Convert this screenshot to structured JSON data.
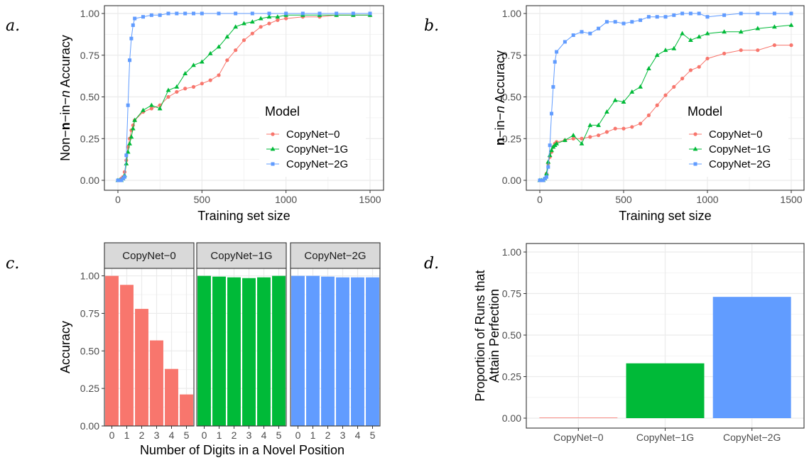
{
  "panel_letters": [
    "a.",
    "b.",
    "c.",
    "d."
  ],
  "colors": {
    "CopyNet-0": "#F8766D",
    "CopyNet-1G": "#00BA38",
    "CopyNet-2G": "#619CFF"
  },
  "chart_data": [
    {
      "type": "line",
      "panel": "a.",
      "xlabel": "Training set size",
      "ylabel_parts": [
        "Non−",
        "n",
        "−in−",
        "n",
        " Accuracy"
      ],
      "xlim": [
        0,
        1500
      ],
      "ylim": [
        0,
        1
      ],
      "xticks": [
        0,
        500,
        1000,
        1500
      ],
      "yticks": [
        0,
        0.25,
        0.5,
        0.75,
        1
      ],
      "ytick_labels": [
        "0.00",
        "0.25",
        "0.50",
        "0.75",
        "1.00"
      ],
      "legend_title": "Model",
      "legend_position": "right-middle",
      "grid": true,
      "series": [
        {
          "name": "CopyNet−0",
          "color": "#F8766D",
          "x": [
            0,
            10,
            20,
            30,
            40,
            50,
            60,
            70,
            80,
            90,
            100,
            150,
            200,
            250,
            300,
            350,
            400,
            450,
            500,
            550,
            600,
            650,
            700,
            750,
            800,
            850,
            900,
            950,
            1000,
            1100,
            1200,
            1300,
            1400,
            1500
          ],
          "y": [
            0,
            0,
            0.01,
            0.02,
            0.05,
            0.12,
            0.2,
            0.25,
            0.3,
            0.33,
            0.36,
            0.41,
            0.43,
            0.45,
            0.5,
            0.53,
            0.55,
            0.56,
            0.58,
            0.6,
            0.63,
            0.72,
            0.78,
            0.84,
            0.88,
            0.92,
            0.94,
            0.96,
            0.97,
            0.98,
            0.98,
            0.99,
            0.99,
            0.99
          ]
        },
        {
          "name": "CopyNet−1G",
          "color": "#00BA38",
          "x": [
            0,
            10,
            20,
            30,
            40,
            50,
            60,
            70,
            80,
            90,
            100,
            150,
            200,
            250,
            300,
            350,
            400,
            450,
            500,
            550,
            600,
            650,
            700,
            750,
            800,
            850,
            900,
            950,
            1000,
            1100,
            1200,
            1300,
            1400,
            1500
          ],
          "y": [
            0,
            0,
            0,
            0.01,
            0.03,
            0.1,
            0.17,
            0.22,
            0.26,
            0.31,
            0.36,
            0.42,
            0.45,
            0.43,
            0.54,
            0.56,
            0.64,
            0.69,
            0.71,
            0.76,
            0.8,
            0.86,
            0.92,
            0.94,
            0.95,
            0.97,
            0.98,
            0.98,
            0.99,
            0.99,
            0.99,
            0.99,
            0.99,
            0.99
          ]
        },
        {
          "name": "CopyNet−2G",
          "color": "#619CFF",
          "x": [
            0,
            10,
            20,
            30,
            40,
            50,
            60,
            70,
            80,
            90,
            100,
            150,
            200,
            250,
            300,
            350,
            400,
            450,
            500,
            600,
            700,
            800,
            900,
            1000,
            1100,
            1200,
            1300,
            1400,
            1500
          ],
          "y": [
            0,
            0,
            0,
            0.01,
            0.02,
            0.15,
            0.45,
            0.72,
            0.85,
            0.93,
            0.97,
            0.98,
            0.99,
            0.99,
            1,
            1,
            1,
            1,
            1,
            1,
            1,
            1,
            1,
            1,
            1,
            1,
            1,
            1,
            1
          ]
        }
      ]
    },
    {
      "type": "line",
      "panel": "b.",
      "xlabel": "Training set size",
      "ylabel_parts": [
        "n",
        "−in−",
        "n",
        " Accuracy"
      ],
      "xlim": [
        0,
        1500
      ],
      "ylim": [
        0,
        1
      ],
      "xticks": [
        0,
        500,
        1000,
        1500
      ],
      "yticks": [
        0,
        0.25,
        0.5,
        0.75,
        1
      ],
      "ytick_labels": [
        "0.00",
        "0.25",
        "0.50",
        "0.75",
        "1.00"
      ],
      "legend_title": "Model",
      "legend_position": "right-middle",
      "grid": true,
      "series": [
        {
          "name": "CopyNet−0",
          "color": "#F8766D",
          "x": [
            0,
            10,
            20,
            30,
            40,
            50,
            60,
            70,
            80,
            90,
            100,
            150,
            200,
            250,
            300,
            350,
            400,
            450,
            500,
            550,
            600,
            650,
            700,
            750,
            800,
            850,
            900,
            950,
            1000,
            1100,
            1200,
            1300,
            1400,
            1500
          ],
          "y": [
            0,
            0,
            0,
            0.01,
            0.04,
            0.1,
            0.14,
            0.17,
            0.2,
            0.22,
            0.23,
            0.24,
            0.25,
            0.25,
            0.26,
            0.27,
            0.29,
            0.31,
            0.31,
            0.32,
            0.34,
            0.39,
            0.45,
            0.51,
            0.56,
            0.61,
            0.66,
            0.68,
            0.73,
            0.76,
            0.78,
            0.78,
            0.81,
            0.81
          ]
        },
        {
          "name": "CopyNet−1G",
          "color": "#00BA38",
          "x": [
            0,
            10,
            20,
            30,
            40,
            50,
            60,
            70,
            80,
            90,
            100,
            150,
            200,
            250,
            300,
            350,
            400,
            450,
            500,
            550,
            600,
            650,
            700,
            750,
            800,
            850,
            900,
            950,
            1000,
            1100,
            1200,
            1300,
            1400,
            1500
          ],
          "y": [
            0,
            0,
            0,
            0.01,
            0.04,
            0.11,
            0.15,
            0.18,
            0.2,
            0.21,
            0.22,
            0.24,
            0.27,
            0.22,
            0.33,
            0.33,
            0.41,
            0.48,
            0.47,
            0.53,
            0.56,
            0.67,
            0.75,
            0.78,
            0.79,
            0.88,
            0.84,
            0.86,
            0.88,
            0.89,
            0.89,
            0.91,
            0.92,
            0.93
          ]
        },
        {
          "name": "CopyNet−2G",
          "color": "#619CFF",
          "x": [
            0,
            10,
            20,
            30,
            40,
            50,
            60,
            70,
            80,
            90,
            100,
            150,
            200,
            250,
            300,
            350,
            400,
            450,
            500,
            550,
            600,
            650,
            700,
            750,
            800,
            850,
            900,
            950,
            1000,
            1100,
            1200,
            1300,
            1400,
            1500
          ],
          "y": [
            0,
            0,
            0,
            0.01,
            0.02,
            0.08,
            0.21,
            0.4,
            0.56,
            0.71,
            0.77,
            0.83,
            0.87,
            0.89,
            0.88,
            0.91,
            0.95,
            0.95,
            0.94,
            0.95,
            0.96,
            0.98,
            0.98,
            0.98,
            0.99,
            1,
            1,
            1,
            0.98,
            0.99,
            1,
            1,
            1,
            1
          ]
        }
      ]
    },
    {
      "type": "bar",
      "panel": "c.",
      "facets": [
        "CopyNet−0",
        "CopyNet−1G",
        "CopyNet−2G"
      ],
      "categories": [
        "0",
        "1",
        "2",
        "3",
        "4",
        "5"
      ],
      "xlabel": "Number of Digits in a Novel Position",
      "ylabel": "Accuracy",
      "ylim": [
        0,
        1.05
      ],
      "yticks": [
        0,
        0.25,
        0.5,
        0.75,
        1
      ],
      "ytick_labels": [
        "0.00",
        "0.25",
        "0.50",
        "0.75",
        "1.00"
      ],
      "grid": true,
      "series": [
        {
          "name": "CopyNet−0",
          "color": "#F8766D",
          "values": [
            1.0,
            0.94,
            0.78,
            0.57,
            0.38,
            0.21
          ]
        },
        {
          "name": "CopyNet−1G",
          "color": "#00BA38",
          "values": [
            1.0,
            0.995,
            0.99,
            0.985,
            0.99,
            1.0
          ]
        },
        {
          "name": "CopyNet−2G",
          "color": "#619CFF",
          "values": [
            1.0,
            1.0,
            0.995,
            0.99,
            0.99,
            0.99
          ]
        }
      ]
    },
    {
      "type": "bar",
      "panel": "d.",
      "categories": [
        "CopyNet−0",
        "CopyNet−1G",
        "CopyNet−2G"
      ],
      "values": [
        0.0,
        0.33,
        0.73
      ],
      "colors": [
        "#F8766D",
        "#00BA38",
        "#619CFF"
      ],
      "ylabel_lines": [
        "Proportion of Runs that",
        "Attain Perfection"
      ],
      "xlabel": "",
      "ylim": [
        0,
        1
      ],
      "yticks": [
        0,
        0.25,
        0.5,
        0.75,
        1
      ],
      "ytick_labels": [
        "0.00",
        "0.25",
        "0.50",
        "0.75",
        "1.00"
      ],
      "grid": true
    }
  ]
}
